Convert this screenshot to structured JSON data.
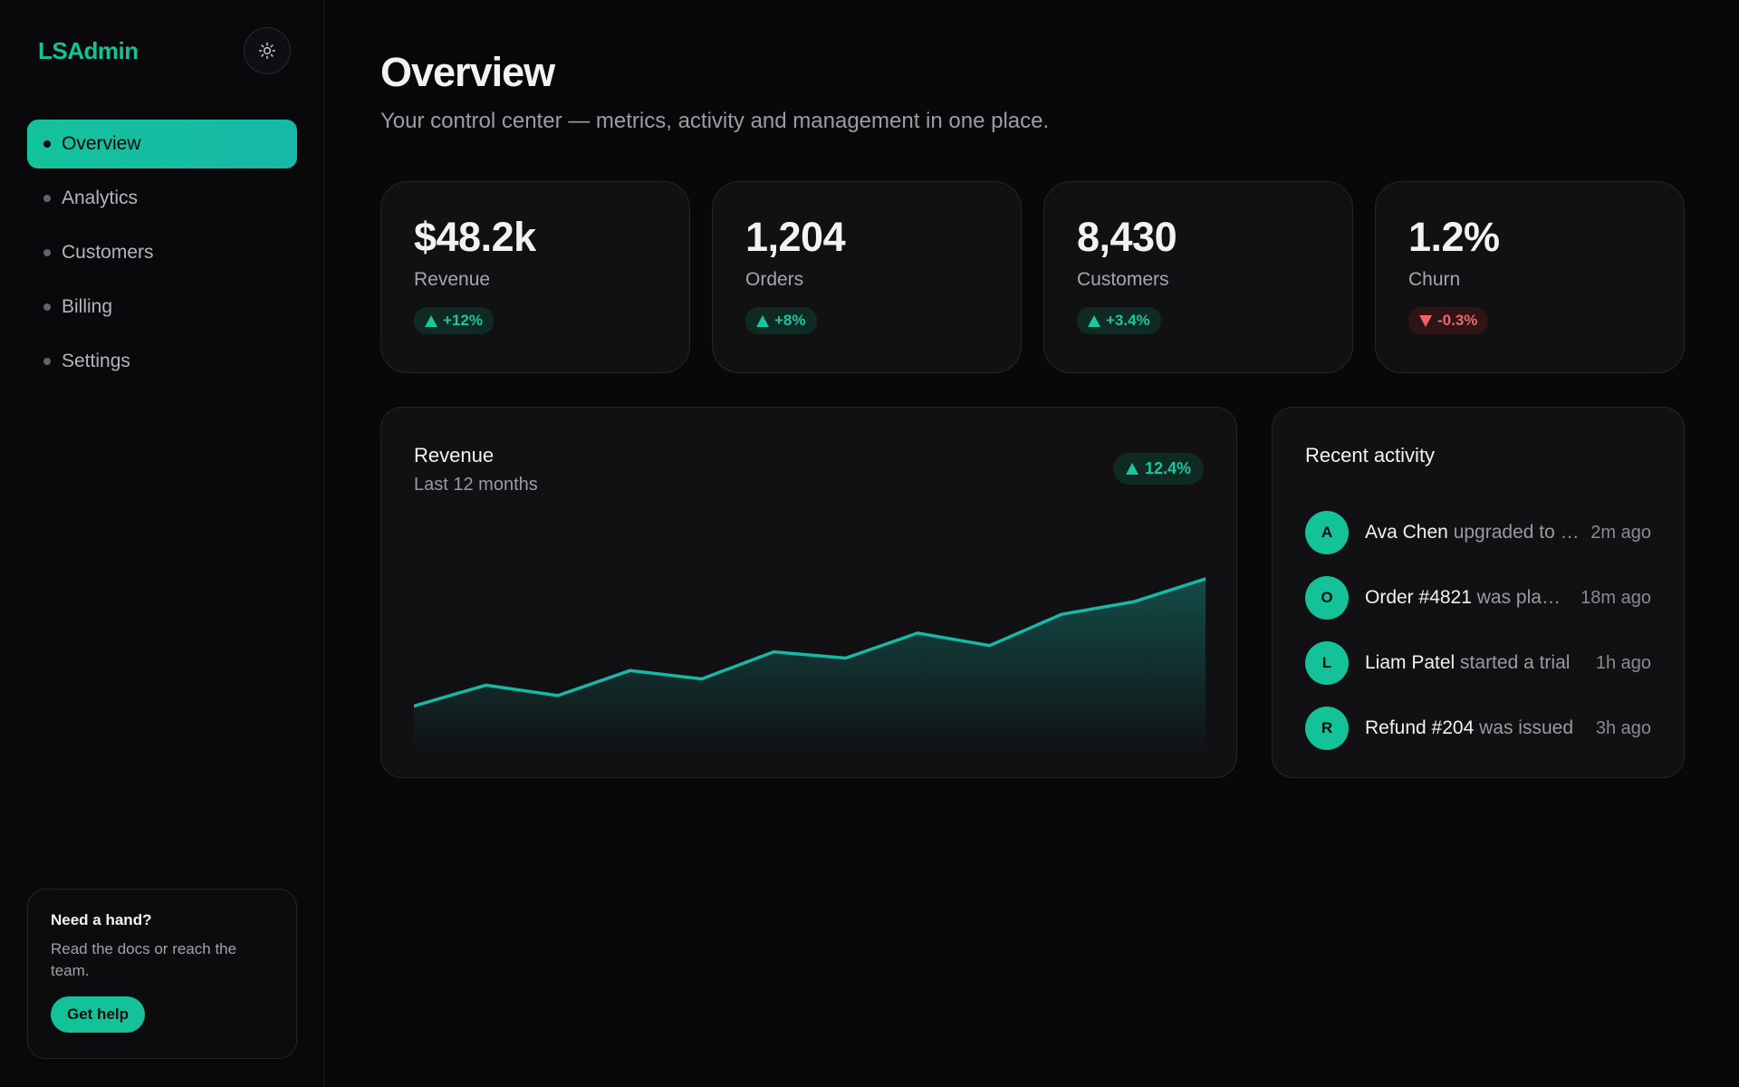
{
  "app": {
    "brand": "LSAdmin"
  },
  "sidebar": {
    "theme_icon": "sun-icon",
    "items": [
      {
        "label": "Overview",
        "active": true
      },
      {
        "label": "Analytics",
        "active": false
      },
      {
        "label": "Customers",
        "active": false
      },
      {
        "label": "Billing",
        "active": false
      },
      {
        "label": "Settings",
        "active": false
      }
    ],
    "help": {
      "title": "Need a hand?",
      "text": "Read the docs or reach the team.",
      "button": "Get help"
    }
  },
  "page": {
    "title": "Overview",
    "subtitle": "Your control center — metrics, activity and management in one place."
  },
  "stats": [
    {
      "value": "$48.2k",
      "label": "Revenue",
      "delta": "+12%",
      "trend": "up"
    },
    {
      "value": "1,204",
      "label": "Orders",
      "delta": "+8%",
      "trend": "up"
    },
    {
      "value": "8,430",
      "label": "Customers",
      "delta": "+3.4%",
      "trend": "up"
    },
    {
      "value": "1.2%",
      "label": "Churn",
      "delta": "-0.3%",
      "trend": "down"
    }
  ],
  "revenue_card": {
    "title": "Revenue",
    "subtitle": "Last 12 months",
    "badge": "12.4%"
  },
  "chart_data": {
    "type": "area",
    "title": "Revenue",
    "subtitle": "Last 12 months",
    "x": [
      1,
      2,
      3,
      4,
      5,
      6,
      7,
      8,
      9,
      10,
      11,
      12
    ],
    "series": [
      {
        "values": [
          22,
          32,
          27,
          39,
          35,
          48,
          45,
          57,
          51,
          66,
          72,
          83
        ]
      }
    ],
    "ylim": [
      0,
      100
    ],
    "grid": false,
    "color": "#17b8a8"
  },
  "activity": {
    "title": "Recent activity",
    "items": [
      {
        "initial": "A",
        "subject": "Ava Chen",
        "action": " upgraded to Pro",
        "time": "2m ago"
      },
      {
        "initial": "O",
        "subject": "Order #4821",
        "action": " was placed",
        "time": "18m ago"
      },
      {
        "initial": "L",
        "subject": "Liam Patel",
        "action": " started a trial",
        "time": "1h ago"
      },
      {
        "initial": "R",
        "subject": "Refund #204",
        "action": " was issued",
        "time": "3h ago"
      }
    ]
  },
  "colors": {
    "accent": "#14c29a",
    "positive": "#18c79d",
    "negative": "#f0636a",
    "background": "#08080b",
    "card": "#111114"
  }
}
